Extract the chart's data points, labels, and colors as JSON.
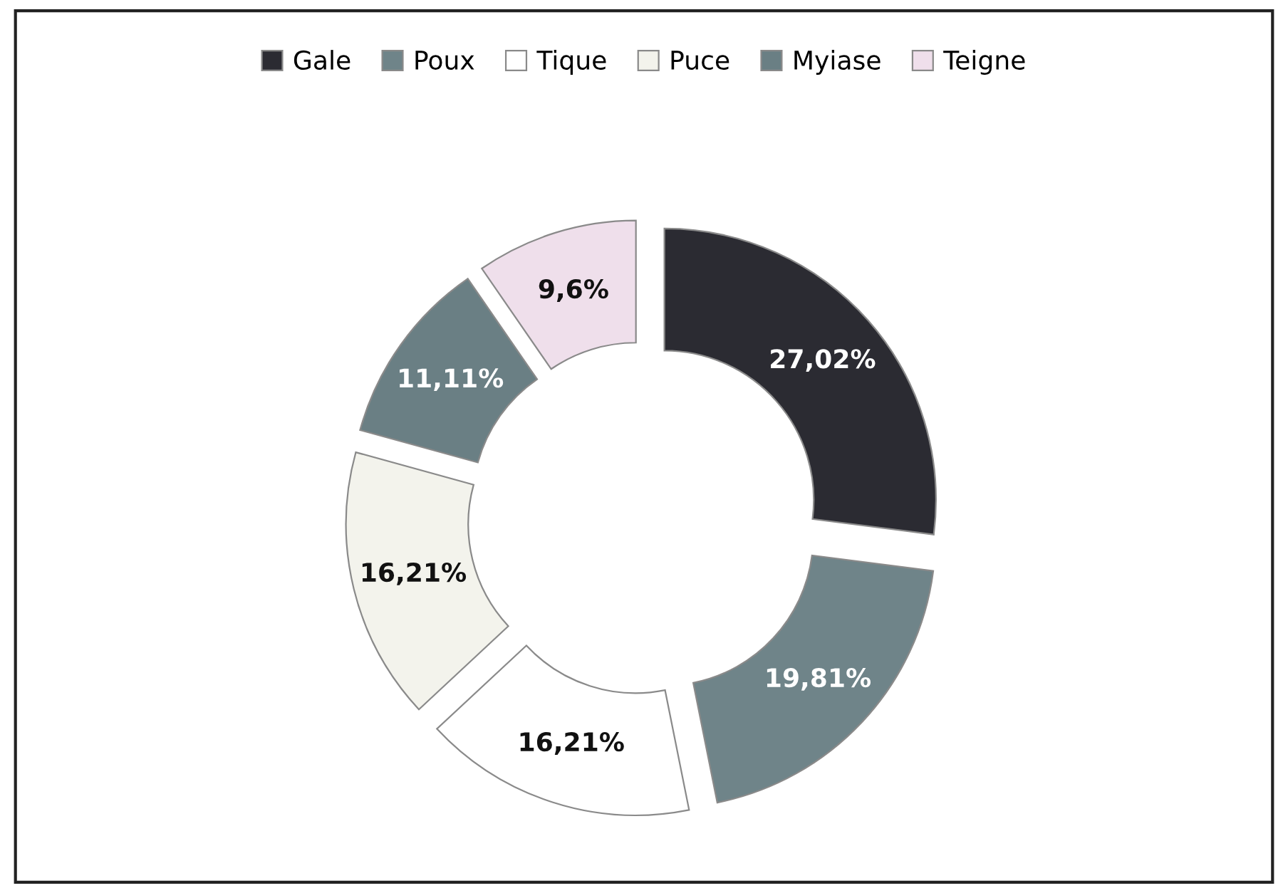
{
  "chart_data": {
    "type": "donut",
    "categories": [
      "Gale",
      "Poux",
      "Tique",
      "Puce",
      "Myiase",
      "Teigne"
    ],
    "values": [
      27.02,
      19.81,
      16.21,
      16.21,
      11.11,
      9.6
    ],
    "colors": [
      "#2b2b32",
      "#6f8489",
      "#ffffff",
      "#f3f3ec",
      "#6a7f84",
      "#efdfeb"
    ],
    "value_labels": [
      "27,02%",
      "19,81%",
      "16,21%",
      "16,21%",
      "11,11%",
      "9,6%"
    ],
    "legend": "top"
  }
}
